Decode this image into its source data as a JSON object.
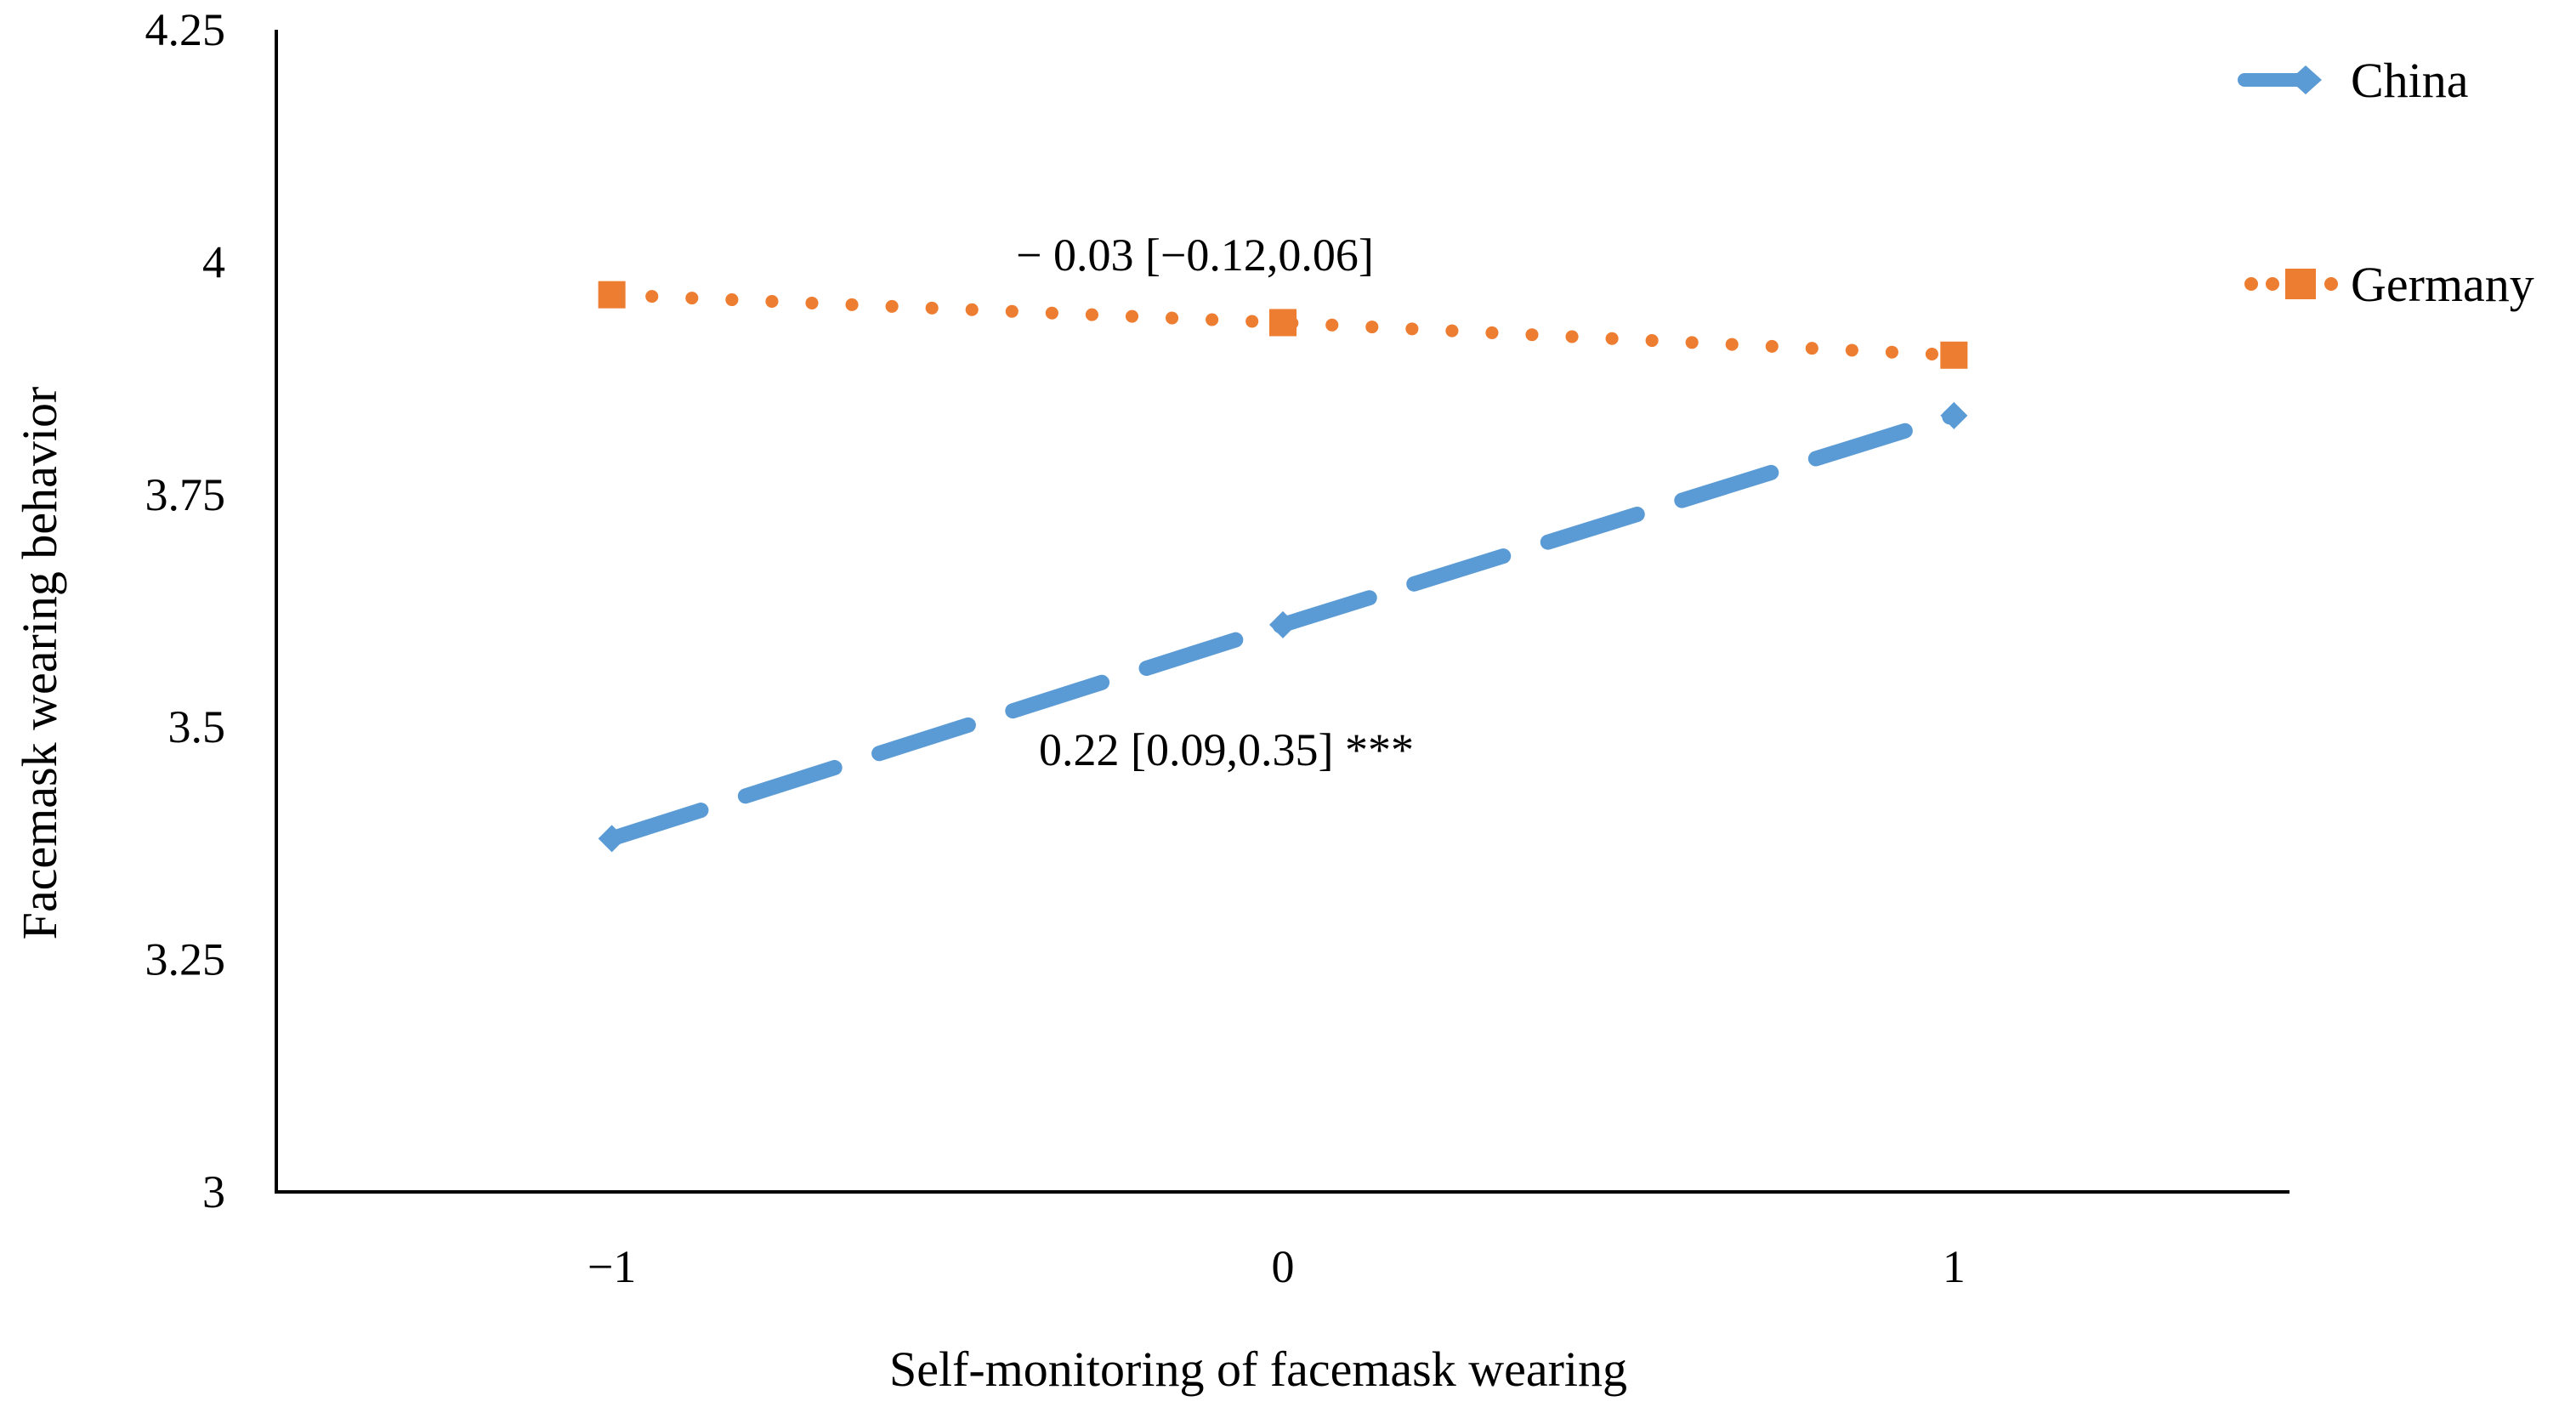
{
  "chart_data": {
    "type": "line",
    "title": "",
    "xlabel": "Self-monitoring of facemask wearing",
    "ylabel": "Facemask wearing behavior",
    "x": [
      -1,
      0,
      1
    ],
    "x_tick_labels": [
      "−1",
      "0",
      "1"
    ],
    "xlim": [
      -1.5,
      1.5
    ],
    "ylim": [
      3,
      4.25
    ],
    "y_ticks": [
      3,
      3.25,
      3.5,
      3.75,
      4,
      4.25
    ],
    "y_tick_labels": [
      "3",
      "3.25",
      "3.5",
      "3.75",
      "4",
      "4.25"
    ],
    "grid": false,
    "legend_position": "top-right",
    "series": [
      {
        "name": "China",
        "values": [
          3.38,
          3.61,
          3.835
        ],
        "color": "#5B9BD5",
        "line_style": "dashed",
        "marker": "diamond"
      },
      {
        "name": "Germany",
        "values": [
          3.965,
          3.935,
          3.9
        ],
        "color": "#ED7D31",
        "line_style": "dotted",
        "marker": "square"
      }
    ],
    "annotations": [
      {
        "text": "− 0.03 [−0.12,0.06]",
        "x": 0,
        "y": 4.0,
        "series": "Germany"
      },
      {
        "text": "0.22 [0.09,0.35] ***",
        "x": 0,
        "y": 3.47,
        "series": "China"
      }
    ]
  }
}
